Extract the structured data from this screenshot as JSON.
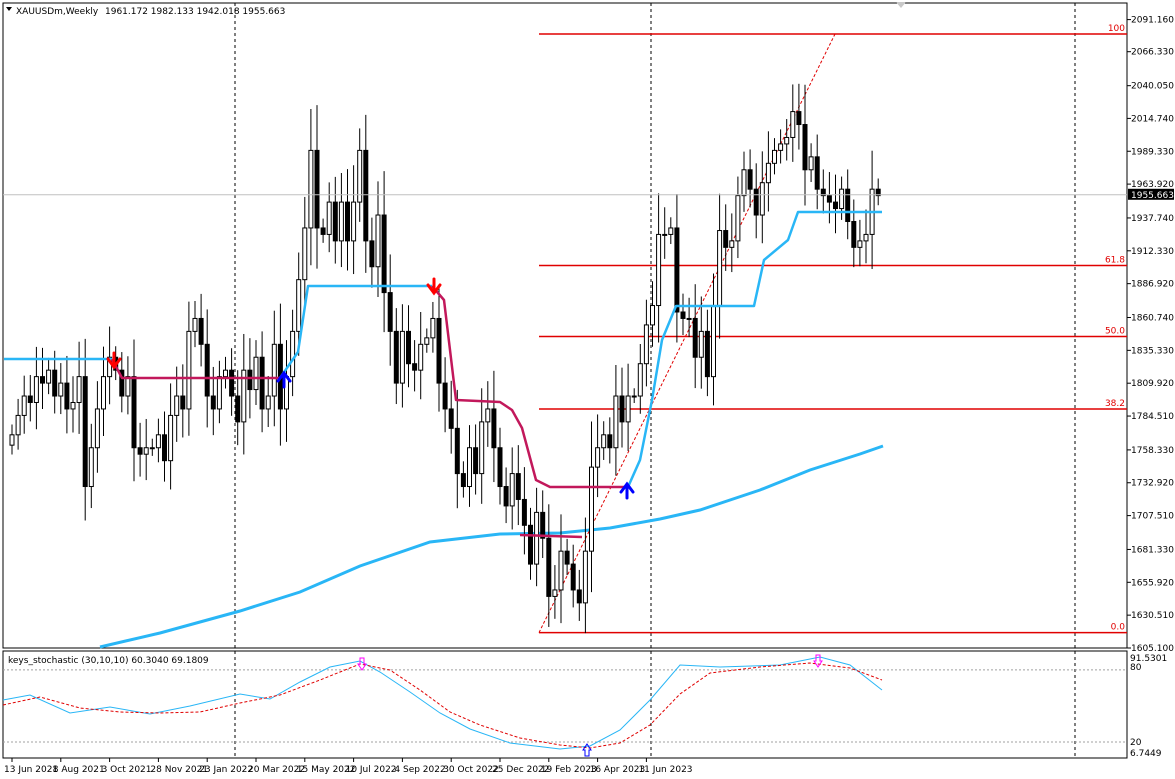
{
  "header": {
    "symbol_label": "XAUUSDm,Weekly",
    "ohlc_label": "1961.172 1982.133 1942.018 1955.663"
  },
  "indicator": {
    "label": "keys_stochastic (30,10,10) 60.3040 69.1809",
    "scale_top": "91.5301",
    "level_high": "80",
    "level_low": "20",
    "scale_bottom": "6.7449"
  },
  "colors": {
    "bull": "#ffffff",
    "bear": "#000000",
    "supertrend_up": "#29b6f6",
    "supertrend_down": "#c2185b",
    "ma": "#29b6f6",
    "fib": "#e00000",
    "arrow_up": "#0000ff",
    "arrow_down": "#ff0000",
    "stoch_main": "#29b6f6",
    "stoch_signal": "#e00000",
    "stoch_arrow": "#ff00ff"
  },
  "chart_data": {
    "type": "candlestick",
    "symbol": "XAUUSDm",
    "timeframe": "Weekly",
    "ylim": [
      1605.1,
      2104.0
    ],
    "price_ticks": [
      "2091.160",
      "2066.330",
      "2040.050",
      "2014.740",
      "1989.330",
      "1963.920",
      "1937.740",
      "1912.330",
      "1886.920",
      "1860.740",
      "1835.330",
      "1809.920",
      "1784.510",
      "1758.330",
      "1732.920",
      "1707.510",
      "1681.330",
      "1655.920",
      "1630.510",
      "1605.100"
    ],
    "current_price": "1955.663",
    "date_labels": [
      "13 Jun 2021",
      "8 Aug 2021",
      "3 Oct 2021",
      "28 Nov 2021",
      "23 Jan 2022",
      "20 Mar 2022",
      "15 May 2022",
      "10 Jul 2022",
      "4 Sep 2022",
      "30 Oct 2022",
      "25 Dec 2022",
      "19 Feb 2023",
      "16 Apr 2023",
      "11 Jun 2023"
    ],
    "date_label_bars": [
      0,
      8,
      16,
      24,
      32,
      40,
      48,
      56,
      64,
      72,
      80,
      88,
      96,
      104
    ],
    "closes": [
      1770,
      1785,
      1800,
      1795,
      1815,
      1810,
      1820,
      1800,
      1810,
      1790,
      1795,
      1815,
      1730,
      1760,
      1790,
      1815,
      1830,
      1820,
      1800,
      1815,
      1760,
      1755,
      1760,
      1760,
      1770,
      1750,
      1785,
      1800,
      1790,
      1850,
      1860,
      1840,
      1800,
      1790,
      1815,
      1820,
      1800,
      1780,
      1820,
      1805,
      1830,
      1790,
      1800,
      1840,
      1790,
      1815,
      1850,
      1890,
      1930,
      1990,
      1930,
      1925,
      1950,
      1920,
      1950,
      1920,
      1950,
      1990,
      1920,
      1900,
      1940,
      1880,
      1850,
      1810,
      1850,
      1825,
      1820,
      1840,
      1845,
      1860,
      1810,
      1790,
      1775,
      1740,
      1730,
      1760,
      1740,
      1780,
      1790,
      1760,
      1730,
      1715,
      1740,
      1720,
      1700,
      1670,
      1710,
      1690,
      1645,
      1650,
      1680,
      1670,
      1650,
      1640,
      1680,
      1745,
      1760,
      1770,
      1760,
      1800,
      1780,
      1800,
      1800,
      1825,
      1855,
      1870,
      1925,
      1925,
      1930,
      1865,
      1860,
      1860,
      1830,
      1850,
      1815,
      1870,
      1928,
      1915,
      1920,
      1955,
      1975,
      1960,
      1940,
      1965,
      1980,
      1990,
      1995,
      2000,
      2020,
      2010,
      1975,
      1985,
      1960,
      1955,
      1950,
      1945,
      1960,
      1935,
      1915,
      1920,
      1925,
      1960,
      1955
    ],
    "fib_levels": [
      {
        "label": "100",
        "price": 2080
      },
      {
        "label": "61.8",
        "price": 1901
      },
      {
        "label": "50.0",
        "price": 1846
      },
      {
        "label": "38.2",
        "price": 1790
      },
      {
        "label": "0.0",
        "price": 1617
      }
    ],
    "stochastic": {
      "range": [
        6.7449,
        91.5301
      ],
      "levels": [
        80,
        20
      ]
    }
  }
}
